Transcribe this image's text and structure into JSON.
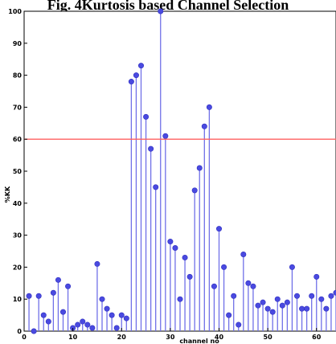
{
  "chart_data": {
    "type": "stem",
    "title": "Fig. 4Kurtosis based Channel Selection",
    "xlabel": "channel no",
    "ylabel": "%KK",
    "xlim": [
      0,
      64
    ],
    "ylim": [
      0,
      100
    ],
    "xticks": [
      "0",
      "10",
      "20",
      "30",
      "40",
      "50",
      "60"
    ],
    "yticks": [
      "0",
      "10",
      "20",
      "30",
      "40",
      "50",
      "60",
      "70",
      "80",
      "90",
      "100"
    ],
    "threshold": 60,
    "colors": {
      "stem": "#7070e8",
      "marker": "#4a4ae0",
      "threshold": "#ff6060"
    },
    "x": [
      1,
      2,
      3,
      4,
      5,
      6,
      7,
      8,
      9,
      10,
      11,
      12,
      13,
      14,
      15,
      16,
      17,
      18,
      19,
      20,
      21,
      22,
      23,
      24,
      25,
      26,
      27,
      28,
      29,
      30,
      31,
      32,
      33,
      34,
      35,
      36,
      37,
      38,
      39,
      40,
      41,
      42,
      43,
      44,
      45,
      46,
      47,
      48,
      49,
      50,
      51,
      52,
      53,
      54,
      55,
      56,
      57,
      58,
      59,
      60,
      61,
      62,
      63,
      64
    ],
    "values": [
      11,
      0,
      11,
      5,
      3,
      12,
      16,
      6,
      14,
      1,
      2,
      3,
      2,
      1,
      21,
      10,
      7,
      5,
      1,
      5,
      4,
      78,
      80,
      83,
      67,
      57,
      45,
      100,
      61,
      28,
      26,
      10,
      23,
      17,
      44,
      51,
      64,
      70,
      14,
      32,
      20,
      5,
      11,
      2,
      24,
      15,
      14,
      8,
      9,
      7,
      6,
      10,
      8,
      9,
      20,
      11,
      7,
      7,
      11,
      17,
      10,
      7,
      11,
      12
    ]
  }
}
